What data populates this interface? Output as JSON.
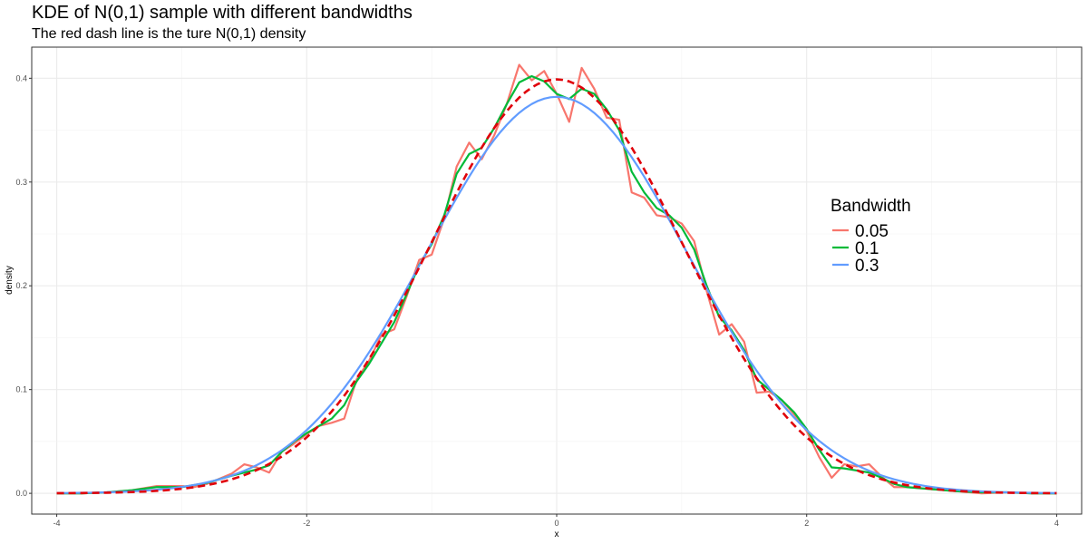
{
  "chart_data": {
    "type": "line",
    "title": "KDE of N(0,1) sample with different bandwidths",
    "subtitle": "The red dash line is the ture N(0,1) density",
    "xlabel": "x",
    "ylabel": "density",
    "xlim": [
      -4.2,
      4.2
    ],
    "ylim": [
      -0.02,
      0.43
    ],
    "x_ticks": [
      -4,
      -2,
      0,
      2,
      4
    ],
    "x_tick_labels": [
      "-4",
      "-2",
      "0",
      "2",
      "4"
    ],
    "y_ticks": [
      0.0,
      0.1,
      0.2,
      0.3,
      0.4
    ],
    "y_tick_labels": [
      "0.0",
      "0.1",
      "0.2",
      "0.3",
      "0.4"
    ],
    "grid": true,
    "legend": {
      "title": "Bandwidth",
      "placement": "right-middle",
      "entries": [
        "0.05",
        "0.1",
        "0.3"
      ]
    },
    "series": [
      {
        "name": "0.05",
        "color": "#F8766D",
        "points": [
          [
            -4.0,
            0.0
          ],
          [
            -3.8,
            0.0
          ],
          [
            -3.6,
            0.001
          ],
          [
            -3.4,
            0.003
          ],
          [
            -3.2,
            0.007
          ],
          [
            -3.0,
            0.007
          ],
          [
            -2.9,
            0.006
          ],
          [
            -2.8,
            0.009
          ],
          [
            -2.7,
            0.014
          ],
          [
            -2.6,
            0.019
          ],
          [
            -2.5,
            0.028
          ],
          [
            -2.4,
            0.025
          ],
          [
            -2.3,
            0.02
          ],
          [
            -2.2,
            0.04
          ],
          [
            -2.1,
            0.048
          ],
          [
            -2.0,
            0.057
          ],
          [
            -1.9,
            0.065
          ],
          [
            -1.8,
            0.068
          ],
          [
            -1.7,
            0.072
          ],
          [
            -1.6,
            0.11
          ],
          [
            -1.5,
            0.128
          ],
          [
            -1.4,
            0.153
          ],
          [
            -1.3,
            0.158
          ],
          [
            -1.2,
            0.19
          ],
          [
            -1.1,
            0.225
          ],
          [
            -1.0,
            0.23
          ],
          [
            -0.9,
            0.265
          ],
          [
            -0.8,
            0.315
          ],
          [
            -0.7,
            0.338
          ],
          [
            -0.6,
            0.322
          ],
          [
            -0.5,
            0.345
          ],
          [
            -0.4,
            0.375
          ],
          [
            -0.3,
            0.413
          ],
          [
            -0.2,
            0.398
          ],
          [
            -0.1,
            0.407
          ],
          [
            0.0,
            0.385
          ],
          [
            0.1,
            0.358
          ],
          [
            0.2,
            0.41
          ],
          [
            0.3,
            0.39
          ],
          [
            0.4,
            0.362
          ],
          [
            0.5,
            0.36
          ],
          [
            0.6,
            0.29
          ],
          [
            0.7,
            0.285
          ],
          [
            0.8,
            0.268
          ],
          [
            0.9,
            0.266
          ],
          [
            1.0,
            0.26
          ],
          [
            1.1,
            0.243
          ],
          [
            1.2,
            0.195
          ],
          [
            1.3,
            0.153
          ],
          [
            1.4,
            0.163
          ],
          [
            1.5,
            0.146
          ],
          [
            1.6,
            0.097
          ],
          [
            1.7,
            0.098
          ],
          [
            1.8,
            0.09
          ],
          [
            1.9,
            0.076
          ],
          [
            2.0,
            0.06
          ],
          [
            2.1,
            0.035
          ],
          [
            2.2,
            0.015
          ],
          [
            2.3,
            0.028
          ],
          [
            2.4,
            0.026
          ],
          [
            2.5,
            0.028
          ],
          [
            2.6,
            0.016
          ],
          [
            2.7,
            0.006
          ],
          [
            2.8,
            0.006
          ],
          [
            3.0,
            0.004
          ],
          [
            3.2,
            0.002
          ],
          [
            3.4,
            0.0
          ],
          [
            3.6,
            0.001
          ],
          [
            3.8,
            0.0
          ],
          [
            4.0,
            0.0
          ]
        ]
      },
      {
        "name": "0.1",
        "color": "#00BA38",
        "points": [
          [
            -4.0,
            0.0
          ],
          [
            -3.8,
            0.0
          ],
          [
            -3.6,
            0.001
          ],
          [
            -3.4,
            0.003
          ],
          [
            -3.2,
            0.006
          ],
          [
            -3.0,
            0.006
          ],
          [
            -2.8,
            0.01
          ],
          [
            -2.6,
            0.017
          ],
          [
            -2.4,
            0.023
          ],
          [
            -2.3,
            0.027
          ],
          [
            -2.2,
            0.04
          ],
          [
            -2.1,
            0.05
          ],
          [
            -2.0,
            0.058
          ],
          [
            -1.9,
            0.065
          ],
          [
            -1.8,
            0.072
          ],
          [
            -1.7,
            0.085
          ],
          [
            -1.6,
            0.108
          ],
          [
            -1.5,
            0.125
          ],
          [
            -1.4,
            0.145
          ],
          [
            -1.3,
            0.165
          ],
          [
            -1.2,
            0.192
          ],
          [
            -1.1,
            0.22
          ],
          [
            -1.0,
            0.24
          ],
          [
            -0.9,
            0.268
          ],
          [
            -0.8,
            0.308
          ],
          [
            -0.7,
            0.327
          ],
          [
            -0.6,
            0.333
          ],
          [
            -0.5,
            0.352
          ],
          [
            -0.4,
            0.375
          ],
          [
            -0.3,
            0.396
          ],
          [
            -0.2,
            0.402
          ],
          [
            -0.1,
            0.397
          ],
          [
            0.0,
            0.385
          ],
          [
            0.1,
            0.38
          ],
          [
            0.2,
            0.39
          ],
          [
            0.3,
            0.385
          ],
          [
            0.4,
            0.37
          ],
          [
            0.5,
            0.35
          ],
          [
            0.6,
            0.31
          ],
          [
            0.7,
            0.29
          ],
          [
            0.8,
            0.275
          ],
          [
            0.9,
            0.268
          ],
          [
            1.0,
            0.256
          ],
          [
            1.1,
            0.235
          ],
          [
            1.2,
            0.2
          ],
          [
            1.3,
            0.17
          ],
          [
            1.4,
            0.157
          ],
          [
            1.5,
            0.138
          ],
          [
            1.6,
            0.11
          ],
          [
            1.7,
            0.1
          ],
          [
            1.8,
            0.09
          ],
          [
            1.9,
            0.078
          ],
          [
            2.0,
            0.062
          ],
          [
            2.1,
            0.042
          ],
          [
            2.2,
            0.025
          ],
          [
            2.3,
            0.024
          ],
          [
            2.4,
            0.022
          ],
          [
            2.5,
            0.02
          ],
          [
            2.6,
            0.015
          ],
          [
            2.7,
            0.009
          ],
          [
            2.8,
            0.006
          ],
          [
            3.0,
            0.004
          ],
          [
            3.2,
            0.002
          ],
          [
            3.4,
            0.001
          ],
          [
            3.6,
            0.001
          ],
          [
            3.8,
            0.0
          ],
          [
            4.0,
            0.0
          ]
        ]
      },
      {
        "name": "0.3",
        "color": "#619CFF",
        "bandwidth": 0.3
      },
      {
        "name": "",
        "role": "true-density",
        "color": "#E0000A",
        "dashed": true,
        "mean": 0,
        "sd": 1
      }
    ]
  }
}
